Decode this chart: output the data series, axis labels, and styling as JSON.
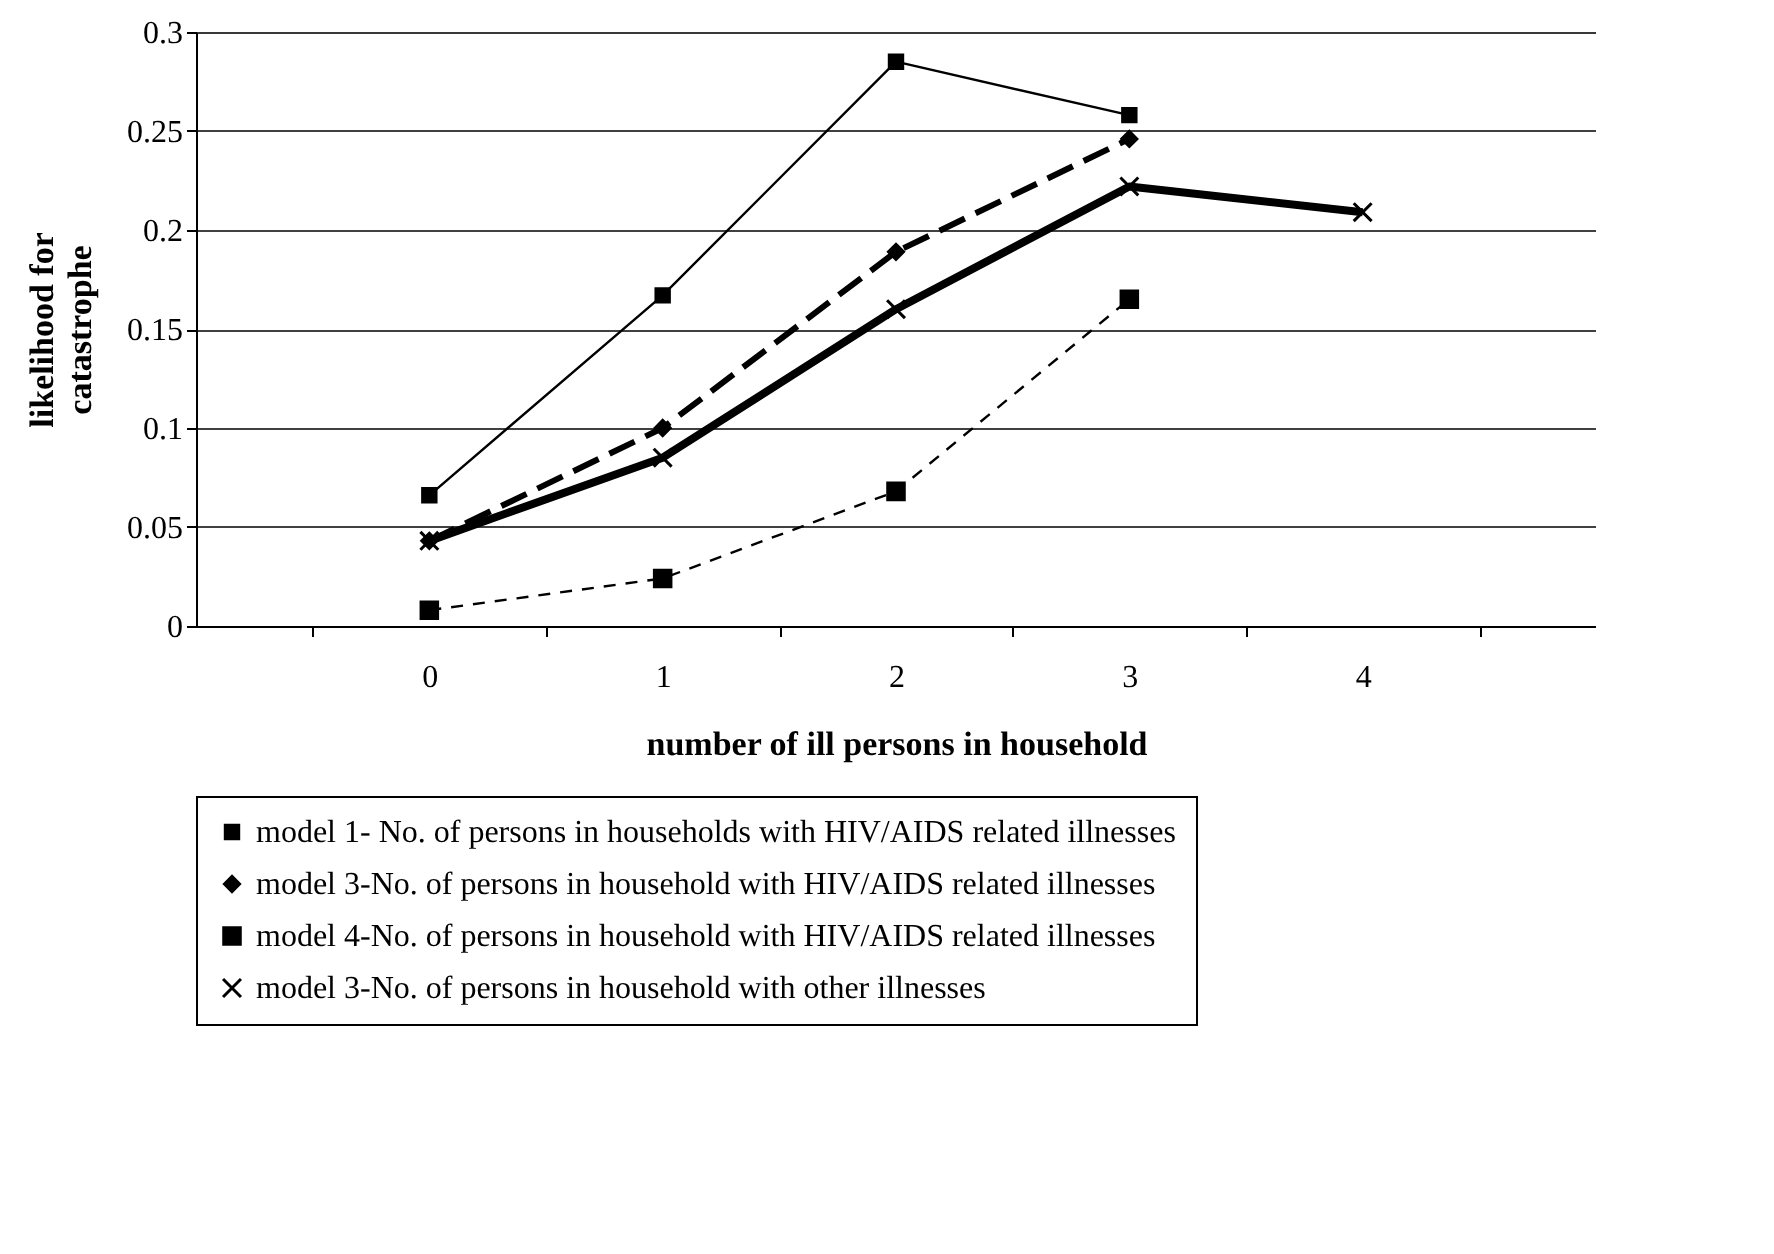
{
  "chart_data": {
    "type": "line",
    "xlabel": "number of ill persons in household",
    "ylabel": "likelihood for catastrophe",
    "categories": [
      "0",
      "1",
      "2",
      "3",
      "4"
    ],
    "series": [
      {
        "name": "model 1- No. of persons in households with HIV/AIDS related illnesses",
        "color": "#000000",
        "marker": "square",
        "line_style": "solid",
        "values": [
          0.066,
          0.167,
          0.285,
          0.258,
          null
        ]
      },
      {
        "name": "model 3-No. of persons in household with HIV/AIDS related illnesses",
        "color": "#000000",
        "marker": "diamond",
        "line_style": "dashed",
        "values": [
          0.043,
          0.1,
          0.189,
          0.246,
          null
        ]
      },
      {
        "name": "model 4-No. of persons in household with HIV/AIDS related illnesses",
        "color": "#000000",
        "marker": "square",
        "line_style": "dashed",
        "values": [
          0.008,
          0.024,
          0.068,
          0.165,
          null
        ]
      },
      {
        "name": "model 3-No. of persons in household with other illnesses",
        "color": "#000000",
        "marker": "cross",
        "line_style": "solid",
        "values": [
          0.043,
          0.085,
          0.16,
          0.222,
          0.209
        ]
      }
    ],
    "ylim": [
      0,
      0.3
    ],
    "yticks": [
      0,
      0.05,
      0.1,
      0.15,
      0.2,
      0.25,
      0.3
    ],
    "grid": "y",
    "legend": "bottom"
  }
}
